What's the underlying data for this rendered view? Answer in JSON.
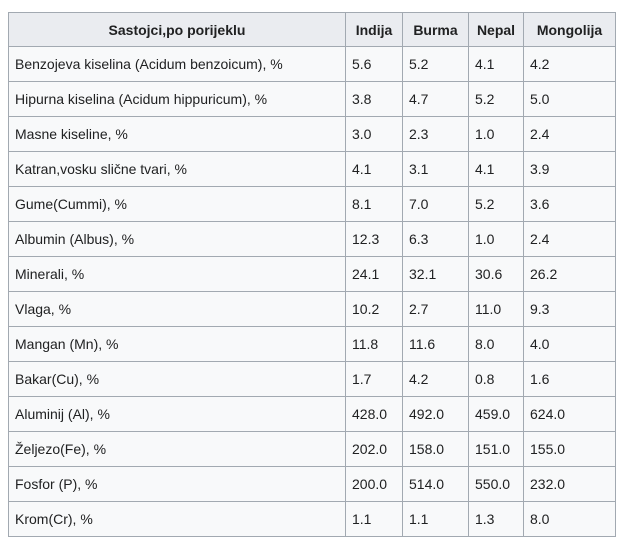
{
  "page": {
    "background": "#ffffff"
  },
  "table": {
    "header": {
      "label": "Sastojci,po porijeklu",
      "countries": [
        "Indija",
        "Burma",
        "Nepal",
        "Mongolija"
      ]
    },
    "rows": [
      {
        "label": "Benzojeva kiselina (Acidum benzoicum), %",
        "values": [
          "5.6",
          "5.2",
          "4.1",
          "4.2"
        ]
      },
      {
        "label": "Hipurna kiselina (Acidum hippuricum), %",
        "values": [
          "3.8",
          "4.7",
          "5.2",
          "5.0"
        ]
      },
      {
        "label": "Masne kiseline, %",
        "values": [
          "3.0",
          "2.3",
          "1.0",
          "2.4"
        ]
      },
      {
        "label": "Katran,vosku slične tvari, %",
        "values": [
          "4.1",
          "3.1",
          "4.1",
          "3.9"
        ]
      },
      {
        "label": "Gume(Cummi), %",
        "values": [
          "8.1",
          "7.0",
          "5.2",
          "3.6"
        ]
      },
      {
        "label": "Albumin (Albus), %",
        "values": [
          "12.3",
          "6.3",
          "1.0",
          "2.4"
        ]
      },
      {
        "label": "Minerali, %",
        "values": [
          "24.1",
          "32.1",
          "30.6",
          "26.2"
        ]
      },
      {
        "label": "Vlaga, %",
        "values": [
          "10.2",
          "2.7",
          "11.0",
          "9.3"
        ]
      },
      {
        "label": "Mangan (Mn), %",
        "values": [
          "11.8",
          "11.6",
          "8.0",
          "4.0"
        ]
      },
      {
        "label": "Bakar(Cu), %",
        "values": [
          "1.7",
          "4.2",
          "0.8",
          "1.6"
        ]
      },
      {
        "label": "Aluminij (Al), %",
        "values": [
          "428.0",
          "492.0",
          "459.0",
          "624.0"
        ]
      },
      {
        "label": "Željezo(Fe), %",
        "values": [
          "202.0",
          "158.0",
          "151.0",
          "155.0"
        ]
      },
      {
        "label": "Fosfor (P), %",
        "values": [
          "200.0",
          "514.0",
          "550.0",
          "232.0"
        ]
      },
      {
        "label": "Krom(Cr), %",
        "values": [
          "1.1",
          "1.1",
          "1.3",
          "8.0"
        ]
      }
    ],
    "colors": {
      "header_bg": "#eaecf0",
      "body_bg": "#f8f9fa",
      "border": "#a2a9b1",
      "text": "#202122"
    }
  }
}
